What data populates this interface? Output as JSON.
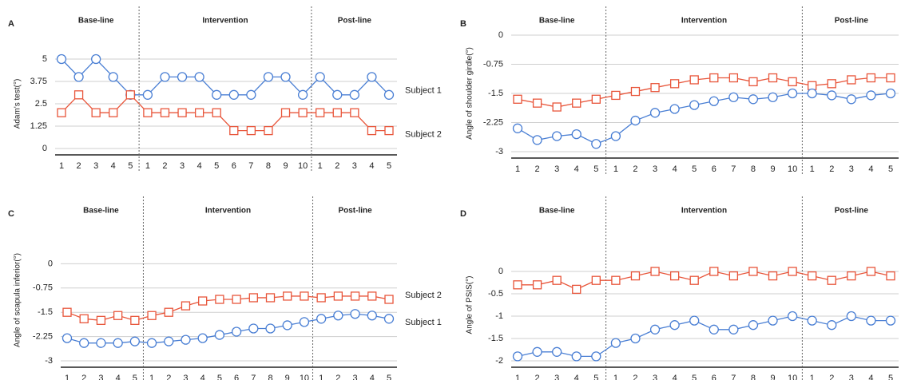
{
  "chart_data": [
    {
      "type": "line",
      "label": "A",
      "ylabel": "Adam's test(°)",
      "phases": [
        "Base-line",
        "Intervention",
        "Post-line"
      ],
      "categories": [
        "1",
        "2",
        "3",
        "4",
        "5",
        "1",
        "2",
        "3",
        "4",
        "5",
        "6",
        "7",
        "8",
        "9",
        "10",
        "1",
        "2",
        "3",
        "4",
        "5"
      ],
      "ylim": [
        0,
        5
      ],
      "yticks": [
        0,
        1.25,
        2.5,
        3.75,
        5
      ],
      "grid": true,
      "series": [
        {
          "name": "Subject 1",
          "color": "#4a7fd4",
          "marker": "circle",
          "values": [
            5,
            4,
            5,
            4,
            3,
            3,
            4,
            4,
            4,
            3,
            3,
            3,
            4,
            4,
            3,
            4,
            3,
            3,
            4,
            3
          ]
        },
        {
          "name": "Subject 2",
          "color": "#e8553a",
          "marker": "square",
          "values": [
            2,
            3,
            2,
            2,
            3,
            2,
            2,
            2,
            2,
            2,
            1,
            1,
            1,
            2,
            2,
            2,
            2,
            2,
            1,
            1
          ]
        }
      ]
    },
    {
      "type": "line",
      "label": "B",
      "ylabel": "Angle of shoulder girdle(°)",
      "phases": [
        "Base-line",
        "Intervention",
        "Post-line"
      ],
      "categories": [
        "1",
        "2",
        "3",
        "4",
        "5",
        "1",
        "2",
        "3",
        "4",
        "5",
        "6",
        "7",
        "8",
        "9",
        "10",
        "1",
        "2",
        "3",
        "4",
        "5"
      ],
      "ylim": [
        -3,
        0
      ],
      "yticks": [
        -3,
        -2.25,
        -1.5,
        -0.75,
        0
      ],
      "grid": true,
      "series": [
        {
          "name": "Subject 2",
          "color": "#e8553a",
          "marker": "square",
          "values": [
            -1.65,
            -1.75,
            -1.85,
            -1.75,
            -1.65,
            -1.55,
            -1.45,
            -1.35,
            -1.25,
            -1.15,
            -1.1,
            -1.1,
            -1.2,
            -1.1,
            -1.2,
            -1.3,
            -1.25,
            -1.15,
            -1.1,
            -1.1
          ]
        },
        {
          "name": "Subject 1",
          "color": "#4a7fd4",
          "marker": "circle",
          "values": [
            -2.4,
            -2.7,
            -2.6,
            -2.55,
            -2.8,
            -2.6,
            -2.2,
            -2.0,
            -1.9,
            -1.8,
            -1.7,
            -1.6,
            -1.65,
            -1.6,
            -1.5,
            -1.5,
            -1.55,
            -1.65,
            -1.55,
            -1.5
          ]
        }
      ]
    },
    {
      "type": "line",
      "label": "C",
      "ylabel": "Angle of scapula inferior(°)",
      "phases": [
        "Base-line",
        "Intervention",
        "Post-line"
      ],
      "categories": [
        "1",
        "2",
        "3",
        "4",
        "5",
        "1",
        "2",
        "3",
        "4",
        "5",
        "6",
        "7",
        "8",
        "9",
        "10",
        "1",
        "2",
        "3",
        "4",
        "5"
      ],
      "ylim": [
        -3,
        0.75
      ],
      "yticks": [
        -3,
        -2.25,
        -1.5,
        -0.75,
        0
      ],
      "grid": true,
      "series": [
        {
          "name": "Subject 2",
          "color": "#e8553a",
          "marker": "square",
          "values": [
            -1.5,
            -1.7,
            -1.75,
            -1.6,
            -1.75,
            -1.6,
            -1.5,
            -1.3,
            -1.15,
            -1.1,
            -1.1,
            -1.05,
            -1.05,
            -1.0,
            -1.0,
            -1.05,
            -1.0,
            -1.0,
            -1.0,
            -1.1
          ]
        },
        {
          "name": "Subject 1",
          "color": "#4a7fd4",
          "marker": "circle",
          "values": [
            -2.3,
            -2.45,
            -2.45,
            -2.45,
            -2.4,
            -2.45,
            -2.4,
            -2.35,
            -2.3,
            -2.2,
            -2.1,
            -2.0,
            -2.0,
            -1.9,
            -1.8,
            -1.7,
            -1.6,
            -1.55,
            -1.6,
            -1.7
          ]
        }
      ]
    },
    {
      "type": "line",
      "label": "D",
      "ylabel": "Angle of PSIS(°)",
      "phases": [
        "Base-line",
        "Intervention",
        "Post-line"
      ],
      "categories": [
        "1",
        "2",
        "3",
        "4",
        "5",
        "1",
        "2",
        "3",
        "4",
        "5",
        "6",
        "7",
        "8",
        "9",
        "10",
        "1",
        "2",
        "3",
        "4",
        "5"
      ],
      "ylim": [
        -2,
        0.5
      ],
      "yticks": [
        -2,
        -1.5,
        -1,
        -0.5,
        0
      ],
      "grid": true,
      "series": [
        {
          "name": "Subject 2",
          "color": "#e8553a",
          "marker": "square",
          "values": [
            -0.3,
            -0.3,
            -0.2,
            -0.4,
            -0.2,
            -0.2,
            -0.1,
            0,
            -0.1,
            -0.2,
            0,
            -0.1,
            0,
            -0.1,
            0,
            -0.1,
            -0.2,
            -0.1,
            0,
            -0.1
          ]
        },
        {
          "name": "Subject 1",
          "color": "#4a7fd4",
          "marker": "circle",
          "values": [
            -1.9,
            -1.8,
            -1.8,
            -1.9,
            -1.9,
            -1.6,
            -1.5,
            -1.3,
            -1.2,
            -1.1,
            -1.3,
            -1.3,
            -1.2,
            -1.1,
            -1.0,
            -1.1,
            -1.2,
            -1.0,
            -1.1,
            -1.1
          ]
        }
      ]
    }
  ]
}
